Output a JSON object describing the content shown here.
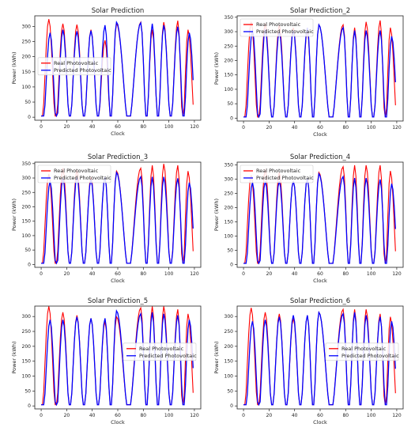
{
  "chart_data": [
    {
      "type": "line",
      "title": "Solar Prediction",
      "xlabel": "Clock",
      "ylabel": "Power (kWh)",
      "xlim": [
        -5,
        125
      ],
      "ylim": [
        -10,
        335
      ],
      "xticks": [
        0,
        20,
        40,
        60,
        80,
        100,
        120
      ],
      "yticks": [
        0,
        50,
        100,
        150,
        200,
        250,
        300
      ],
      "legend": "center-left",
      "x_range": [
        0,
        119
      ],
      "series": [
        {
          "name": "Real Photovoltaic",
          "color": "#ff0000",
          "peaks": [
            320,
            305,
            302,
            285,
            250,
            305,
            310,
            285,
            310,
            315,
            285
          ],
          "peak_hours": [
            6,
            17,
            28,
            39,
            50,
            59,
            78,
            87,
            96,
            107,
            115
          ]
        },
        {
          "name": "Predicted Photovoltaic",
          "color": "#0000ff",
          "peaks": [
            275,
            285,
            280,
            282,
            300,
            310,
            308,
            305,
            300,
            295,
            275
          ],
          "peak_hours": [
            7,
            17,
            28,
            39,
            50,
            59,
            78,
            87,
            96,
            107,
            116
          ]
        }
      ]
    },
    {
      "type": "line",
      "title": "Solar Prediction_2",
      "xlabel": "Clock",
      "ylabel": "Power (kWh)",
      "xlim": [
        -5,
        125
      ],
      "ylim": [
        -10,
        355
      ],
      "xticks": [
        0,
        20,
        40,
        60,
        80,
        100,
        120
      ],
      "yticks": [
        0,
        50,
        100,
        150,
        200,
        250,
        300,
        350
      ],
      "legend": "top-left",
      "x_range": [
        0,
        119
      ],
      "series": [
        {
          "name": "Real Photovoltaic",
          "color": "#ff0000",
          "peaks": [
            330,
            325,
            320,
            310,
            300,
            320,
            320,
            310,
            330,
            335,
            310
          ],
          "peak_hours": [
            6,
            17,
            28,
            39,
            50,
            59,
            78,
            87,
            96,
            107,
            115
          ]
        },
        {
          "name": "Predicted Photovoltaic",
          "color": "#0000ff",
          "peaks": [
            300,
            305,
            295,
            300,
            310,
            320,
            310,
            300,
            300,
            300,
            280
          ],
          "peak_hours": [
            7,
            17,
            28,
            39,
            50,
            59,
            78,
            87,
            96,
            107,
            116
          ]
        }
      ]
    },
    {
      "type": "line",
      "title": "Solar Prediction_3",
      "xlabel": "Clock",
      "ylabel": "Power (kWh)",
      "xlim": [
        -5,
        125
      ],
      "ylim": [
        -10,
        355
      ],
      "xticks": [
        0,
        20,
        40,
        60,
        80,
        100,
        120
      ],
      "yticks": [
        0,
        50,
        100,
        150,
        200,
        250,
        300,
        350
      ],
      "legend": "top-left",
      "x_range": [
        0,
        119
      ],
      "series": [
        {
          "name": "Real Photovoltaic",
          "color": "#ff0000",
          "peaks": [
            310,
            330,
            325,
            300,
            300,
            320,
            330,
            340,
            345,
            340,
            320
          ],
          "peak_hours": [
            6,
            17,
            28,
            39,
            50,
            59,
            78,
            87,
            96,
            107,
            115
          ]
        },
        {
          "name": "Predicted Photovoltaic",
          "color": "#0000ff",
          "peaks": [
            285,
            295,
            300,
            290,
            300,
            315,
            300,
            300,
            300,
            295,
            280
          ],
          "peak_hours": [
            7,
            17,
            28,
            39,
            50,
            59,
            78,
            87,
            96,
            107,
            116
          ]
        }
      ]
    },
    {
      "type": "line",
      "title": "Solar Prediction_4",
      "xlabel": "Clock",
      "ylabel": "Power (kWh)",
      "xlim": [
        -5,
        125
      ],
      "ylim": [
        -10,
        360
      ],
      "xticks": [
        0,
        20,
        40,
        60,
        80,
        100,
        120
      ],
      "yticks": [
        0,
        50,
        100,
        150,
        200,
        250,
        300,
        350
      ],
      "legend": "top-left",
      "x_range": [
        0,
        119
      ],
      "series": [
        {
          "name": "Real Photovoltaic",
          "color": "#ff0000",
          "peaks": [
            310,
            330,
            320,
            290,
            300,
            320,
            340,
            345,
            345,
            345,
            325
          ],
          "peak_hours": [
            6,
            17,
            28,
            39,
            50,
            59,
            78,
            87,
            96,
            107,
            115
          ]
        },
        {
          "name": "Predicted Photovoltaic",
          "color": "#0000ff",
          "peaks": [
            285,
            290,
            290,
            290,
            300,
            315,
            305,
            300,
            300,
            295,
            280
          ],
          "peak_hours": [
            7,
            17,
            28,
            39,
            50,
            59,
            78,
            87,
            96,
            107,
            116
          ]
        }
      ]
    },
    {
      "type": "line",
      "title": "Solar Prediction_5",
      "xlabel": "Clock",
      "ylabel": "Power (kWh)",
      "xlim": [
        -5,
        125
      ],
      "ylim": [
        -10,
        335
      ],
      "xticks": [
        0,
        20,
        40,
        60,
        80,
        100,
        120
      ],
      "yticks": [
        0,
        50,
        100,
        150,
        200,
        250,
        300
      ],
      "legend": "center-right",
      "x_range": [
        0,
        119
      ],
      "series": [
        {
          "name": "Real Photovoltaic",
          "color": "#ff0000",
          "peaks": [
            330,
            310,
            300,
            290,
            280,
            295,
            325,
            330,
            330,
            320,
            305
          ],
          "peak_hours": [
            6,
            17,
            28,
            39,
            50,
            59,
            78,
            87,
            96,
            107,
            115
          ]
        },
        {
          "name": "Predicted Photovoltaic",
          "color": "#0000ff",
          "peaks": [
            285,
            285,
            295,
            290,
            290,
            315,
            305,
            310,
            305,
            300,
            285
          ],
          "peak_hours": [
            7,
            17,
            28,
            39,
            50,
            59,
            78,
            87,
            96,
            107,
            116
          ]
        }
      ]
    },
    {
      "type": "line",
      "title": "Solar Prediction_6",
      "xlabel": "Clock",
      "ylabel": "Power (kWh)",
      "xlim": [
        -5,
        125
      ],
      "ylim": [
        -10,
        335
      ],
      "xticks": [
        0,
        20,
        40,
        60,
        80,
        100,
        120
      ],
      "yticks": [
        0,
        50,
        100,
        150,
        200,
        250,
        300
      ],
      "legend": "center-right",
      "x_range": [
        0,
        119
      ],
      "series": [
        {
          "name": "Real Photovoltaic",
          "color": "#ff0000",
          "peaks": [
            325,
            310,
            305,
            290,
            300,
            310,
            320,
            320,
            320,
            305,
            295
          ],
          "peak_hours": [
            6,
            17,
            28,
            39,
            50,
            59,
            78,
            87,
            96,
            107,
            115
          ]
        },
        {
          "name": "Predicted Photovoltaic",
          "color": "#0000ff",
          "peaks": [
            280,
            285,
            295,
            300,
            300,
            310,
            305,
            310,
            300,
            295,
            280
          ],
          "peak_hours": [
            7,
            17,
            28,
            39,
            50,
            59,
            78,
            87,
            96,
            107,
            116
          ]
        }
      ]
    }
  ]
}
